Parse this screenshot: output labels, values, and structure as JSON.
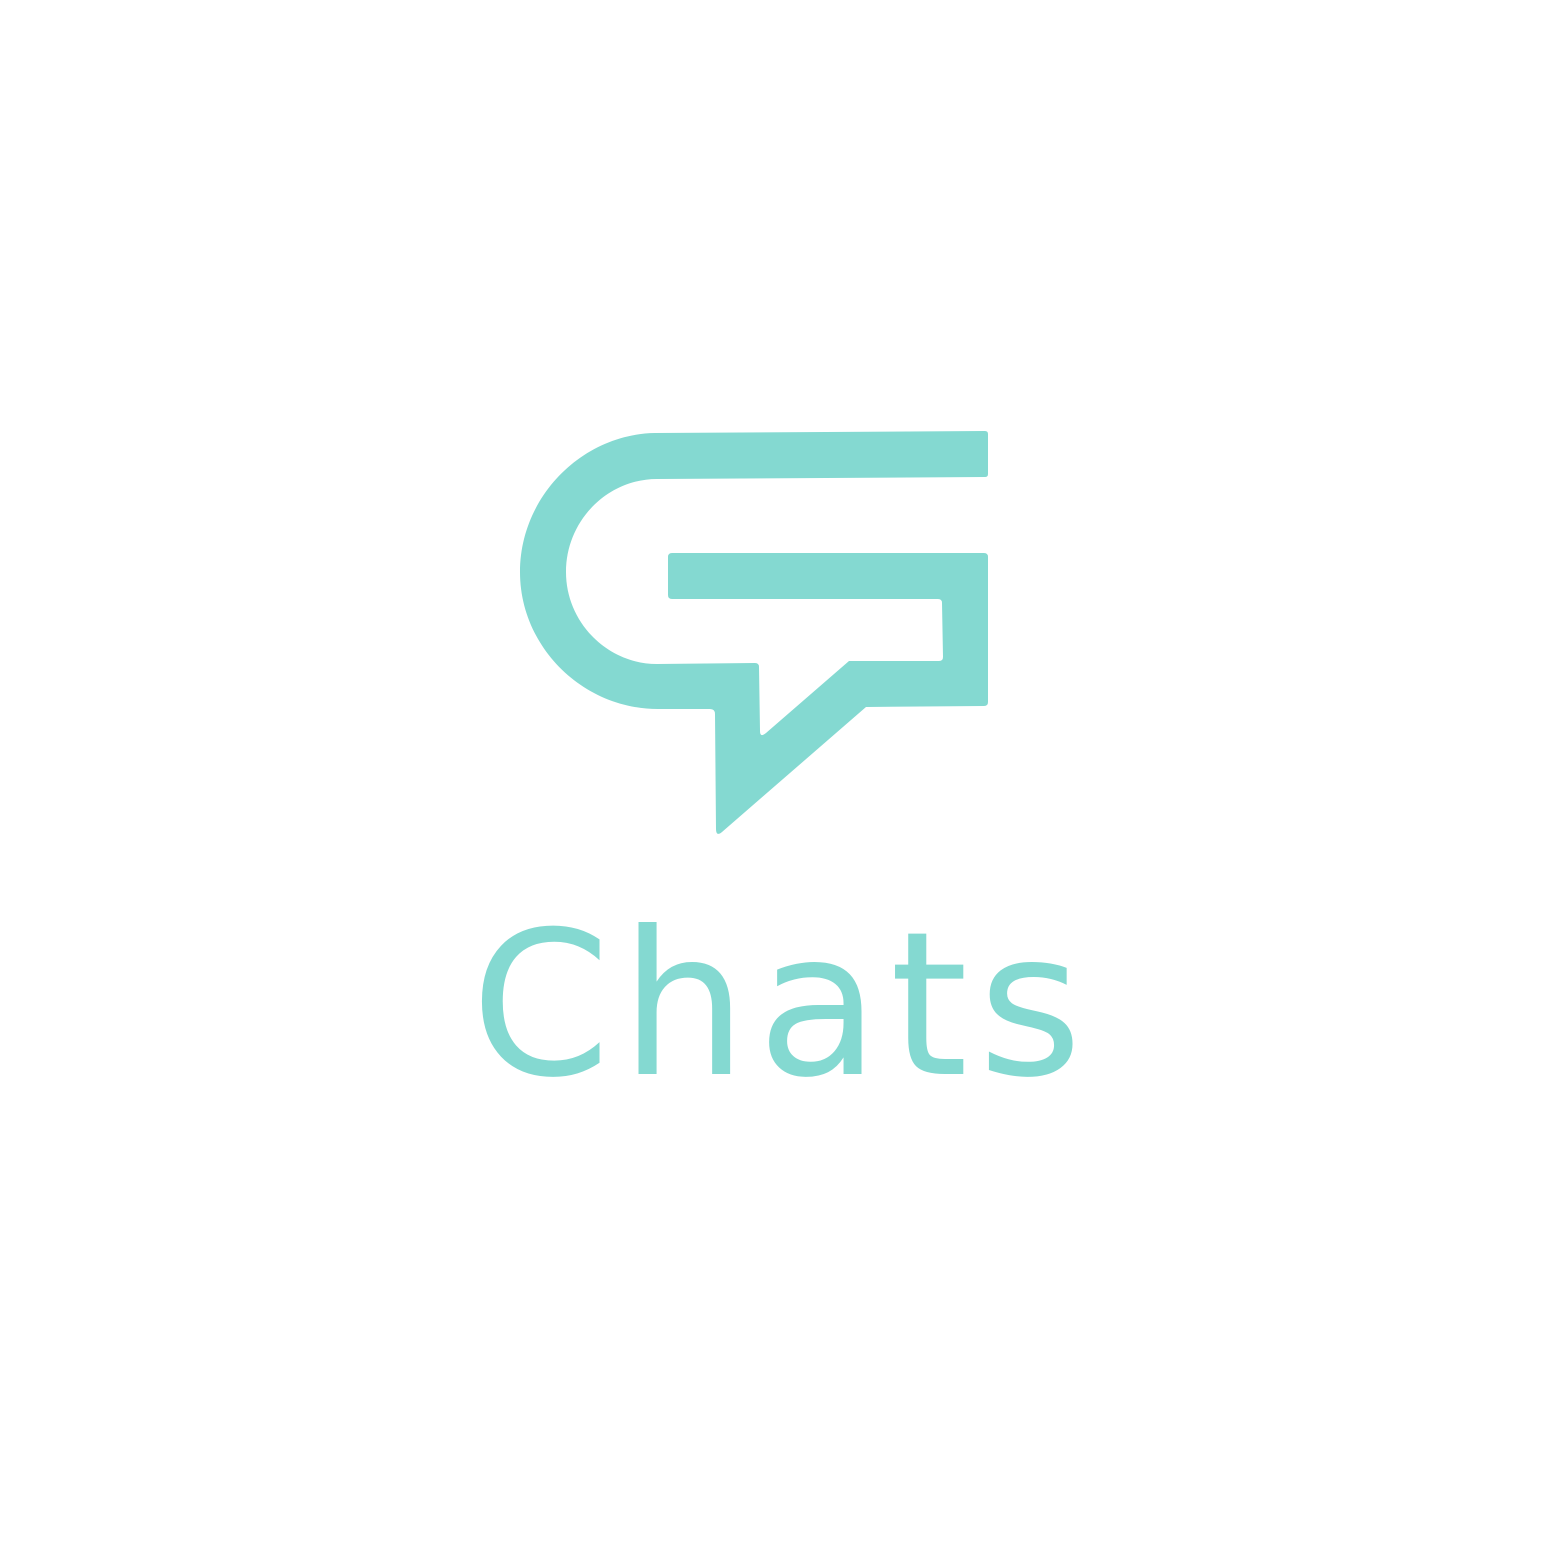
{
  "brand": {
    "name": "Chats",
    "icon": "chat-bubble-g-icon",
    "color": "#84d9d1",
    "background": "#ffffff"
  }
}
